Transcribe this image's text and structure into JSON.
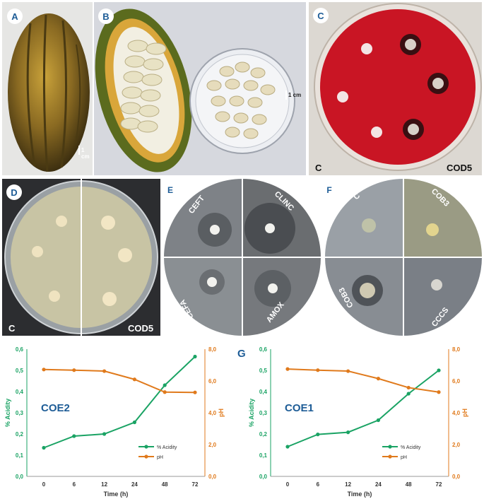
{
  "panels": {
    "a": {
      "letter": "A",
      "scale": "1 cm"
    },
    "b": {
      "letter": "B",
      "scale": "1 cm"
    },
    "c": {
      "letter": "C",
      "left_label": "C",
      "right_label": "COD5"
    },
    "d": {
      "letter": "D",
      "left_label": "C",
      "right_label": "COD5"
    },
    "e": {
      "letter": "E",
      "quadrants": [
        "CEFT",
        "CLINC",
        "CEFA",
        "AMOX"
      ]
    },
    "f": {
      "letter": "F",
      "quadrants": [
        "C",
        "COB3",
        "COB3",
        "CCCS"
      ]
    }
  },
  "g_letter": "G",
  "colors": {
    "acidity": "#1aa364",
    "ph": "#e07a1c",
    "badge": "#1d5c96",
    "agar_red": "#c91524"
  },
  "chart_data": [
    {
      "type": "line",
      "title": "COE2",
      "categories": [
        "0",
        "6",
        "12",
        "24",
        "48",
        "72"
      ],
      "xlabel": "Time (h)",
      "ylabel": "% Acidity",
      "y2label": "pH",
      "ylim": [
        0,
        0.6
      ],
      "y2lim": [
        0,
        8
      ],
      "yticks": [
        "0,0",
        "0,1",
        "0,2",
        "0,3",
        "0,4",
        "0,5",
        "0,6"
      ],
      "y2ticks": [
        "0,0",
        "2,0",
        "4,0",
        "6,0",
        "8,0"
      ],
      "series": [
        {
          "name": "% Acidity",
          "axis": "left",
          "values": [
            0.135,
            0.19,
            0.2,
            0.255,
            0.43,
            0.565
          ]
        },
        {
          "name": "pH",
          "axis": "right",
          "values": [
            6.72,
            6.68,
            6.62,
            6.1,
            5.3,
            5.28
          ]
        }
      ],
      "legend": "bottom-right"
    },
    {
      "type": "line",
      "title": "COE1",
      "categories": [
        "0",
        "6",
        "12",
        "24",
        "48",
        "72"
      ],
      "xlabel": "Time (h)",
      "ylabel": "% Acidity",
      "y2label": "pH",
      "ylim": [
        0,
        0.6
      ],
      "y2lim": [
        0,
        8
      ],
      "yticks": [
        "0,0",
        "0,1",
        "0,2",
        "0,3",
        "0,4",
        "0,5",
        "0,6"
      ],
      "y2ticks": [
        "0,0",
        "2,0",
        "4,0",
        "6,0",
        "8,0"
      ],
      "series": [
        {
          "name": "% Acidity",
          "axis": "left",
          "values": [
            0.14,
            0.198,
            0.208,
            0.265,
            0.39,
            0.5
          ]
        },
        {
          "name": "pH",
          "axis": "right",
          "values": [
            6.75,
            6.68,
            6.62,
            6.15,
            5.58,
            5.3
          ]
        }
      ],
      "legend": "bottom-right"
    }
  ]
}
